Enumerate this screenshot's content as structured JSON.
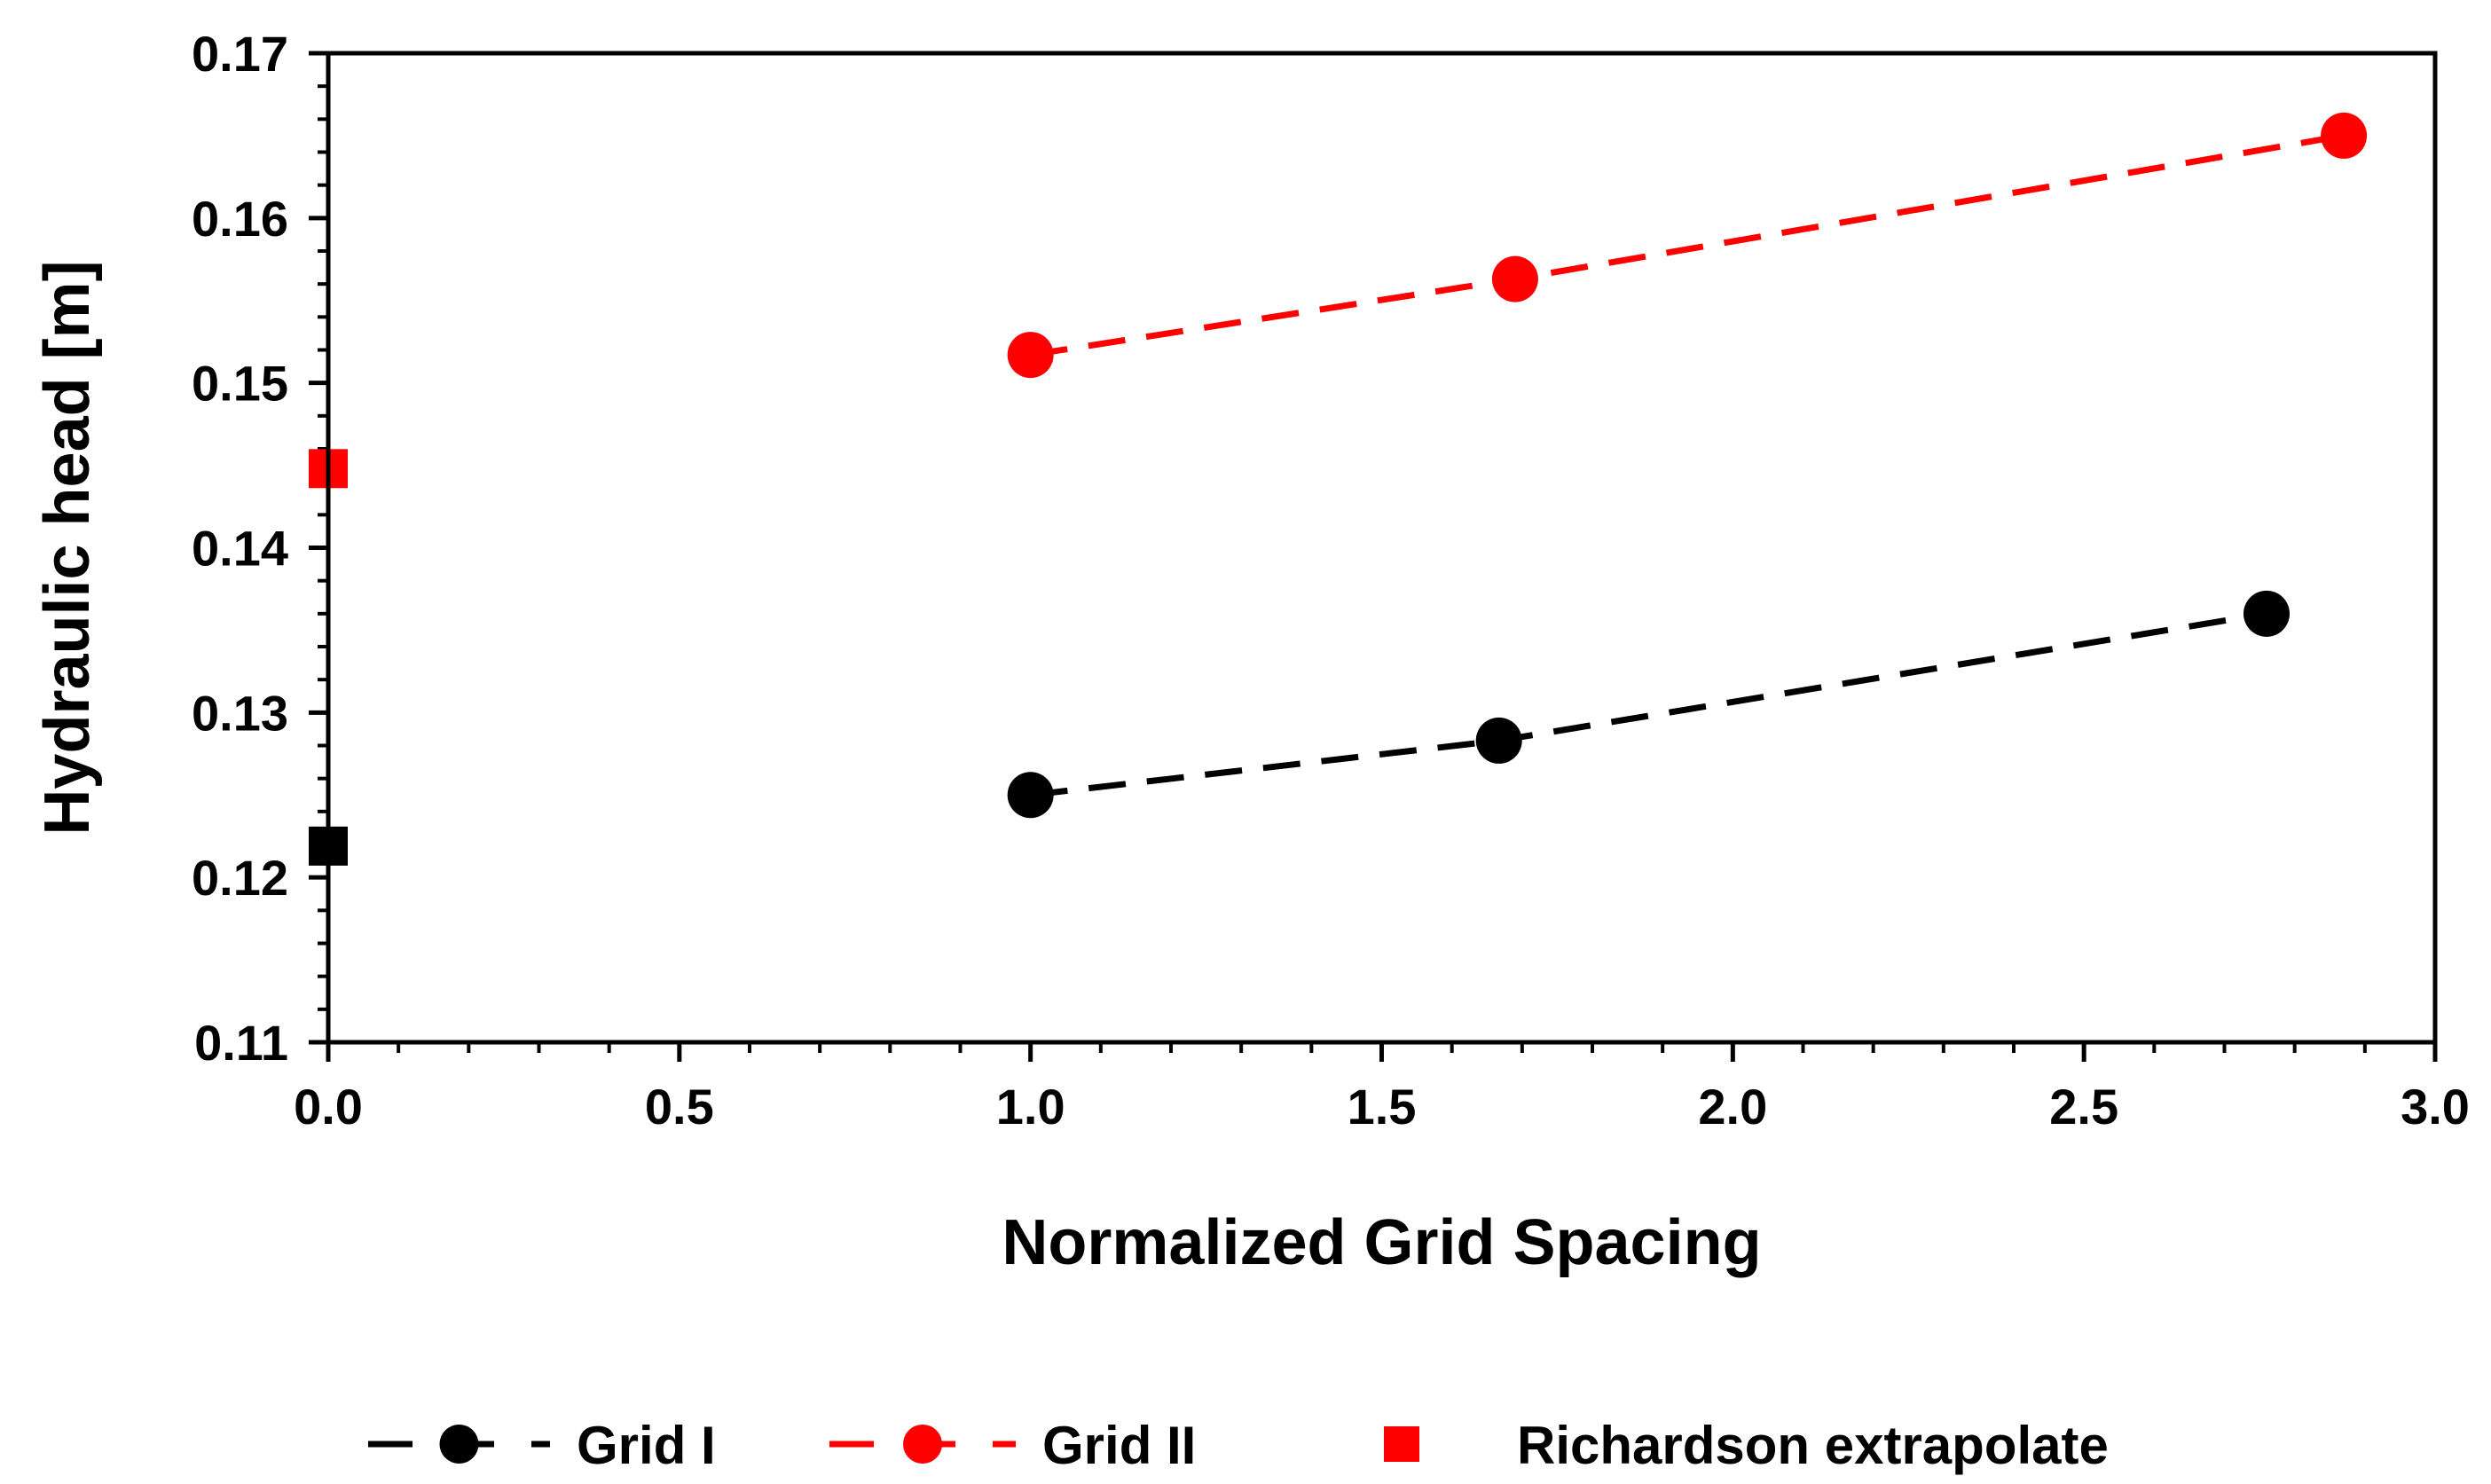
{
  "chart_data": {
    "type": "scatter",
    "xlabel": "Normalized Grid Spacing",
    "ylabel": "Hydraulic head [m]",
    "xlim": [
      0.0,
      3.0
    ],
    "ylim": [
      0.11,
      0.17
    ],
    "x_ticks": [
      "0.0",
      "0.5",
      "1.0",
      "1.5",
      "2.0",
      "2.5",
      "3.0"
    ],
    "y_ticks": [
      "0.11",
      "0.12",
      "0.13",
      "0.14",
      "0.15",
      "0.16",
      "0.17"
    ],
    "grid": false,
    "legend_position": "bottom",
    "series": [
      {
        "name": "Grid I",
        "color": "#000000",
        "marker": "circle",
        "line": "dashed",
        "x": [
          1.0,
          1.667,
          2.76
        ],
        "y": [
          0.125,
          0.1283,
          0.136
        ]
      },
      {
        "name": "Grid II",
        "color": "#ff0000",
        "marker": "circle",
        "line": "dashed",
        "x": [
          1.0,
          1.69,
          2.87
        ],
        "y": [
          0.1517,
          0.1563,
          0.165
        ]
      },
      {
        "name": "Richardson extrapolate",
        "color": "#ff0000",
        "marker": "square",
        "line": "none",
        "points": [
          {
            "x": 0.0,
            "y": 0.1448,
            "color": "#ff0000"
          },
          {
            "x": 0.0,
            "y": 0.1219,
            "color": "#000000"
          }
        ]
      }
    ]
  }
}
